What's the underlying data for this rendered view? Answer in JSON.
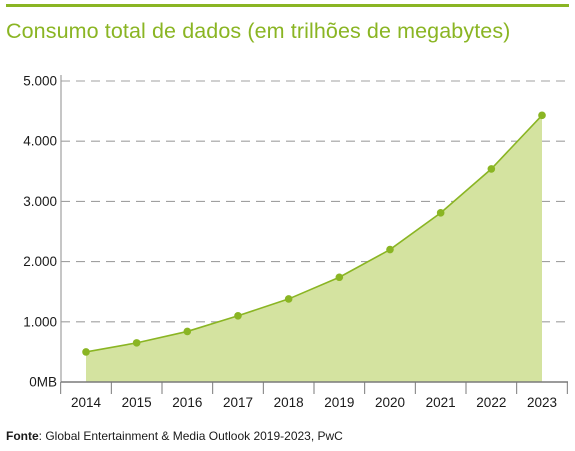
{
  "header": {
    "title": "Consumo total de dados (em trilhões de megabytes)"
  },
  "footer": {
    "source_label": "Fonte",
    "source_text": ": Global Entertainment & Media Outlook 2019-2023, PwC"
  },
  "colors": {
    "accent": "#8ab523",
    "fill": "#d4e3a0",
    "grid": "#a0a0a0",
    "text": "#1a1a1a"
  },
  "chart_data": {
    "type": "area",
    "title": "Consumo total de dados (em trilhões de megabytes)",
    "xlabel": "",
    "ylabel": "",
    "x": [
      "2014",
      "2015",
      "2016",
      "2017",
      "2018",
      "2019",
      "2020",
      "2021",
      "2022",
      "2023"
    ],
    "values": [
      500,
      650,
      840,
      1100,
      1380,
      1740,
      2200,
      2810,
      3540,
      4430
    ],
    "ylim": [
      0,
      5000
    ],
    "yticks": [
      0,
      1000,
      2000,
      3000,
      4000,
      5000
    ],
    "ytick_labels": [
      "0MB",
      "1.000",
      "2.000",
      "3.000",
      "4.000",
      "5.000"
    ],
    "grid": true,
    "legend": "none"
  }
}
